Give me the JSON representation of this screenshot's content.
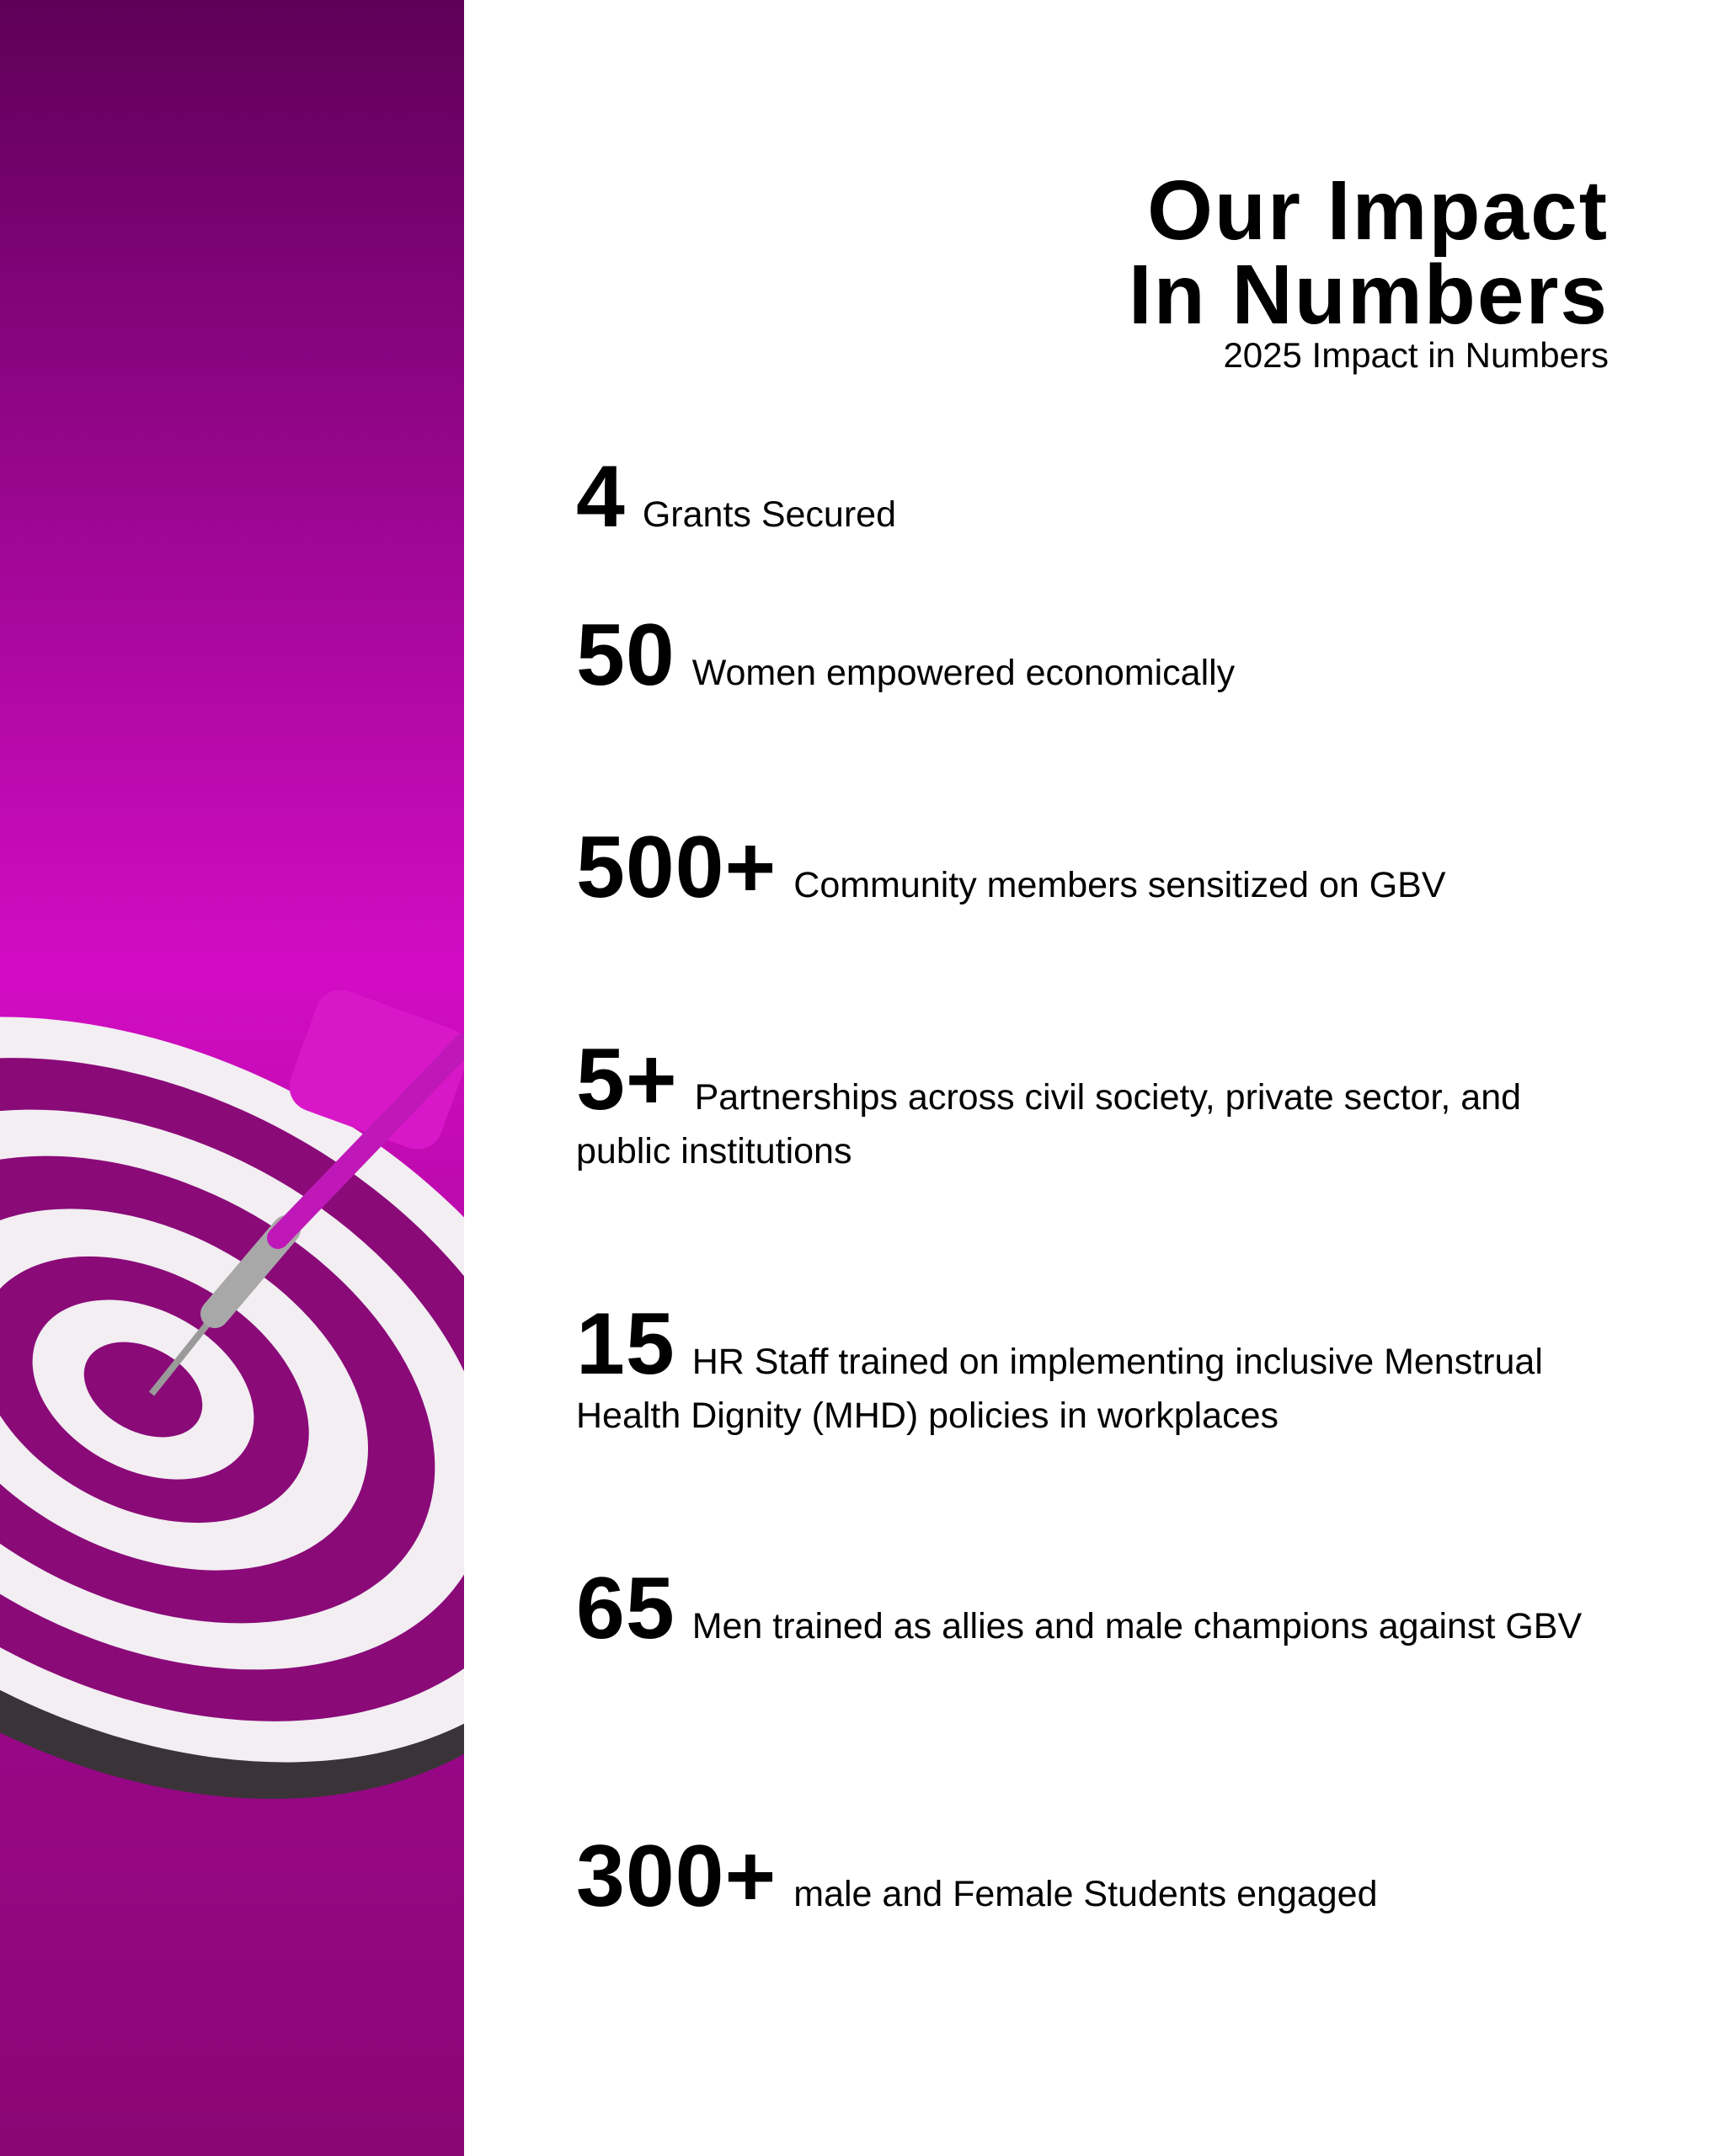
{
  "header": {
    "title_line1": "Our Impact",
    "title_line2": "In Numbers",
    "subtitle": "2025 Impact in Numbers"
  },
  "stats": [
    {
      "value": "4",
      "label": "Grants Secured"
    },
    {
      "value": "50",
      "label": "Women empowered economically"
    },
    {
      "value": "500+",
      "label": "Community members sensitized on GBV"
    },
    {
      "value": "5+",
      "label": "Partnerships across civil society, private sector, and public institutions"
    },
    {
      "value": "15",
      "label": "HR Staff trained on implementing inclusive Menstrual Health Dignity (MHD) policies in workplaces"
    },
    {
      "value": "65",
      "label": "Men trained as allies and male champions against GBV"
    },
    {
      "value": "300+",
      "label": "male and Female Students engaged"
    }
  ],
  "colors": {
    "panel_dark": "#5e0058",
    "panel_bright": "#d30cc4",
    "ring_purple": "#8a0a78",
    "ring_white": "#f2eef2"
  }
}
